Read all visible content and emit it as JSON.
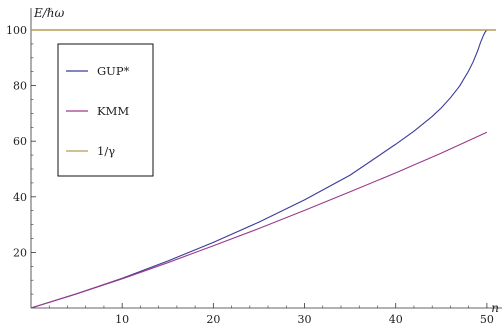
{
  "chart_data": {
    "type": "line",
    "title": "",
    "xlabel": "n",
    "ylabel": "E/ℏω",
    "xlim": [
      0,
      51
    ],
    "ylim": [
      0,
      100
    ],
    "x_ticks": [
      10,
      20,
      30,
      40,
      50
    ],
    "y_ticks": [
      20,
      40,
      60,
      80,
      100
    ],
    "x_tick_labels": [
      "10",
      "20",
      "30",
      "40",
      "50"
    ],
    "y_tick_labels": [
      "20",
      "40",
      "60",
      "80",
      "100"
    ],
    "grid": false,
    "legend_position": "top-left",
    "series": [
      {
        "name": "GUP*",
        "color": "#3b3b9a",
        "x": [
          0,
          5,
          10,
          15,
          20,
          25,
          30,
          35,
          40,
          42,
          44,
          45,
          46,
          47,
          48,
          48.5,
          49,
          49.3,
          49.6,
          49.8,
          50
        ],
        "y": [
          0,
          5.1,
          10.7,
          16.9,
          23.6,
          30.9,
          38.9,
          47.8,
          58.9,
          63.6,
          68.9,
          72.0,
          75.6,
          79.8,
          85.3,
          88.6,
          92.6,
          95.5,
          97.9,
          99.2,
          100
        ]
      },
      {
        "name": "KMM",
        "color": "#9a3a8a",
        "x": [
          0,
          5,
          10,
          15,
          20,
          25,
          30,
          35,
          40,
          45,
          50
        ],
        "y": [
          0,
          5.1,
          10.5,
          16.3,
          22.4,
          28.6,
          35.1,
          41.8,
          48.6,
          55.7,
          63.2
        ]
      },
      {
        "name": "1/γ",
        "color": "#b59a5a",
        "x": [
          0,
          51
        ],
        "y": [
          100,
          100
        ]
      }
    ]
  }
}
